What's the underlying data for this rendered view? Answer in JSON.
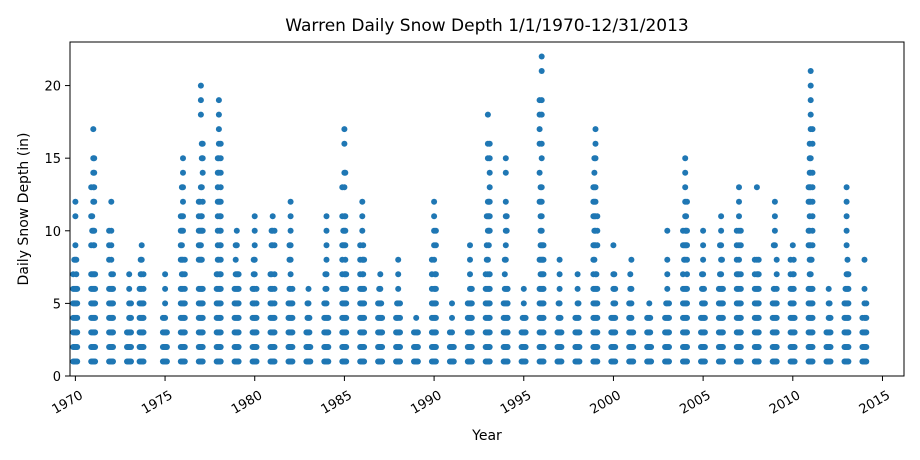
{
  "chart_data": {
    "type": "scatter",
    "title": "Warren Daily Snow Depth 1/1/1970-12/31/2013",
    "xlabel": "Year",
    "ylabel": "Daily Snow Depth (in)",
    "xlim": [
      1969.7,
      2016.2
    ],
    "ylim": [
      0,
      23
    ],
    "xticks": [
      1970,
      1975,
      1980,
      1985,
      1990,
      1995,
      2000,
      2005,
      2010,
      2015
    ],
    "yticks": [
      0,
      5,
      10,
      15,
      20
    ],
    "grid": false,
    "marker_color": "#1f77b4",
    "winter_max_depth": [
      [
        1970,
        12
      ],
      [
        1971,
        17
      ],
      [
        1972,
        12
      ],
      [
        1973,
        7
      ],
      [
        1973.7,
        9
      ],
      [
        1975,
        7
      ],
      [
        1976,
        15
      ],
      [
        1977,
        20
      ],
      [
        1978,
        19
      ],
      [
        1979,
        10
      ],
      [
        1980,
        11
      ],
      [
        1981,
        11
      ],
      [
        1982,
        12
      ],
      [
        1983,
        6
      ],
      [
        1984,
        11
      ],
      [
        1985,
        17
      ],
      [
        1986,
        12
      ],
      [
        1987,
        7
      ],
      [
        1988,
        8
      ],
      [
        1989,
        4
      ],
      [
        1990,
        12
      ],
      [
        1991,
        5
      ],
      [
        1992,
        9
      ],
      [
        1993,
        18
      ],
      [
        1994,
        15
      ],
      [
        1995,
        6
      ],
      [
        1996,
        22
      ],
      [
        1997,
        8
      ],
      [
        1998,
        7
      ],
      [
        1999,
        17
      ],
      [
        2000,
        9
      ],
      [
        2001,
        8
      ],
      [
        2002,
        5
      ],
      [
        2003,
        10
      ],
      [
        2004,
        15
      ],
      [
        2005,
        10
      ],
      [
        2006,
        11
      ],
      [
        2007,
        13
      ],
      [
        2008,
        13
      ],
      [
        2009,
        12
      ],
      [
        2010,
        9
      ],
      [
        2011,
        21
      ],
      [
        2012,
        6
      ],
      [
        2013,
        13
      ],
      [
        2014,
        8
      ]
    ],
    "x": [],
    "y": []
  }
}
